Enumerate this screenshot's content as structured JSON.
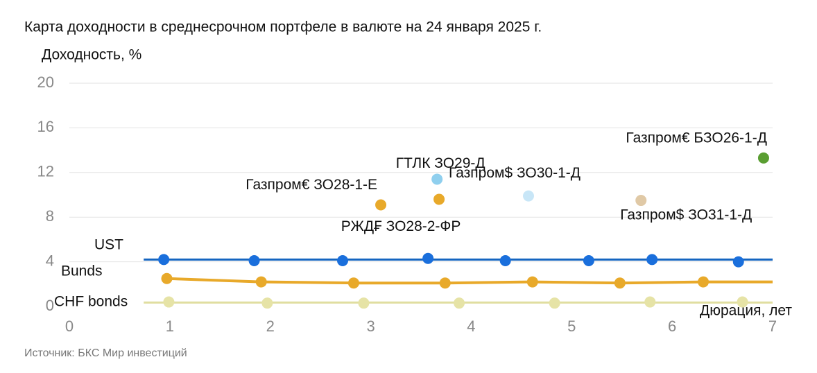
{
  "chart_data": {
    "type": "scatter",
    "title": "Карта доходности в среднесрочном портфеле в валюте на 24 января 2025 г.",
    "y_label": "Доходность, %",
    "x_label": "Дюрация, лет",
    "source": "Источник: БКС Мир инвестиций",
    "xlim": [
      0,
      7
    ],
    "xticks": [
      0,
      1,
      2,
      3,
      4,
      5,
      6,
      7
    ],
    "ylim": [
      0,
      20
    ],
    "yticks": [
      0,
      4,
      8,
      12,
      16,
      20
    ],
    "grid": true,
    "series": [
      {
        "name": "UST",
        "color": "#1a6fdc",
        "line_color": "#1565c0",
        "line_x": [
          0.74,
          7
        ],
        "line_values": [
          4.2,
          4.2
        ],
        "x": [
          0.94,
          1.84,
          2.72,
          3.57,
          4.34,
          5.17,
          5.8,
          6.66
        ],
        "values": [
          4.2,
          4.1,
          4.1,
          4.3,
          4.1,
          4.1,
          4.2,
          4.0
        ]
      },
      {
        "name": "Bunds",
        "color": "#e8a92a",
        "line_color": "#e8a92a",
        "line_x": [
          0.97,
          1.91,
          2.83,
          3.74,
          4.61,
          5.48,
          6.31,
          7
        ],
        "line_values": [
          2.5,
          2.2,
          2.1,
          2.1,
          2.2,
          2.1,
          2.2,
          2.2
        ],
        "x": [
          0.97,
          1.91,
          2.83,
          3.74,
          4.61,
          5.48,
          6.31
        ],
        "values": [
          2.5,
          2.2,
          2.1,
          2.1,
          2.2,
          2.1,
          2.2
        ]
      },
      {
        "name": "CHF bonds",
        "color": "#e6e3a6",
        "line_color": "#e0dea0",
        "line_x": [
          0.74,
          7
        ],
        "line_values": [
          0.35,
          0.35
        ],
        "x": [
          0.99,
          1.97,
          2.93,
          3.88,
          4.83,
          5.78,
          6.7
        ],
        "values": [
          0.4,
          0.3,
          0.3,
          0.3,
          0.3,
          0.4,
          0.4
        ]
      }
    ],
    "points": [
      {
        "label": "Газпром€ ЗО28-1-Е",
        "x": 3.1,
        "y": 9.1,
        "color": "#e8a92a"
      },
      {
        "label": "РЖД₣ ЗО28-2-ФР",
        "x": 3.68,
        "y": 9.6,
        "color": "#e8a92a"
      },
      {
        "label": "ГТЛК ЗО29-Д",
        "x": 3.66,
        "y": 11.4,
        "color": "#8fcfee"
      },
      {
        "label": "Газпром$ ЗО30-1-Д",
        "x": 4.57,
        "y": 9.9,
        "color": "#c8e6f7"
      },
      {
        "label": "Газпром$ ЗО31-1-Д",
        "x": 5.69,
        "y": 9.5,
        "color": "#e0c9a6"
      },
      {
        "label": "Газпром€ БЗО26-1-Д",
        "x": 6.91,
        "y": 13.3,
        "color": "#5a9e32"
      }
    ]
  }
}
